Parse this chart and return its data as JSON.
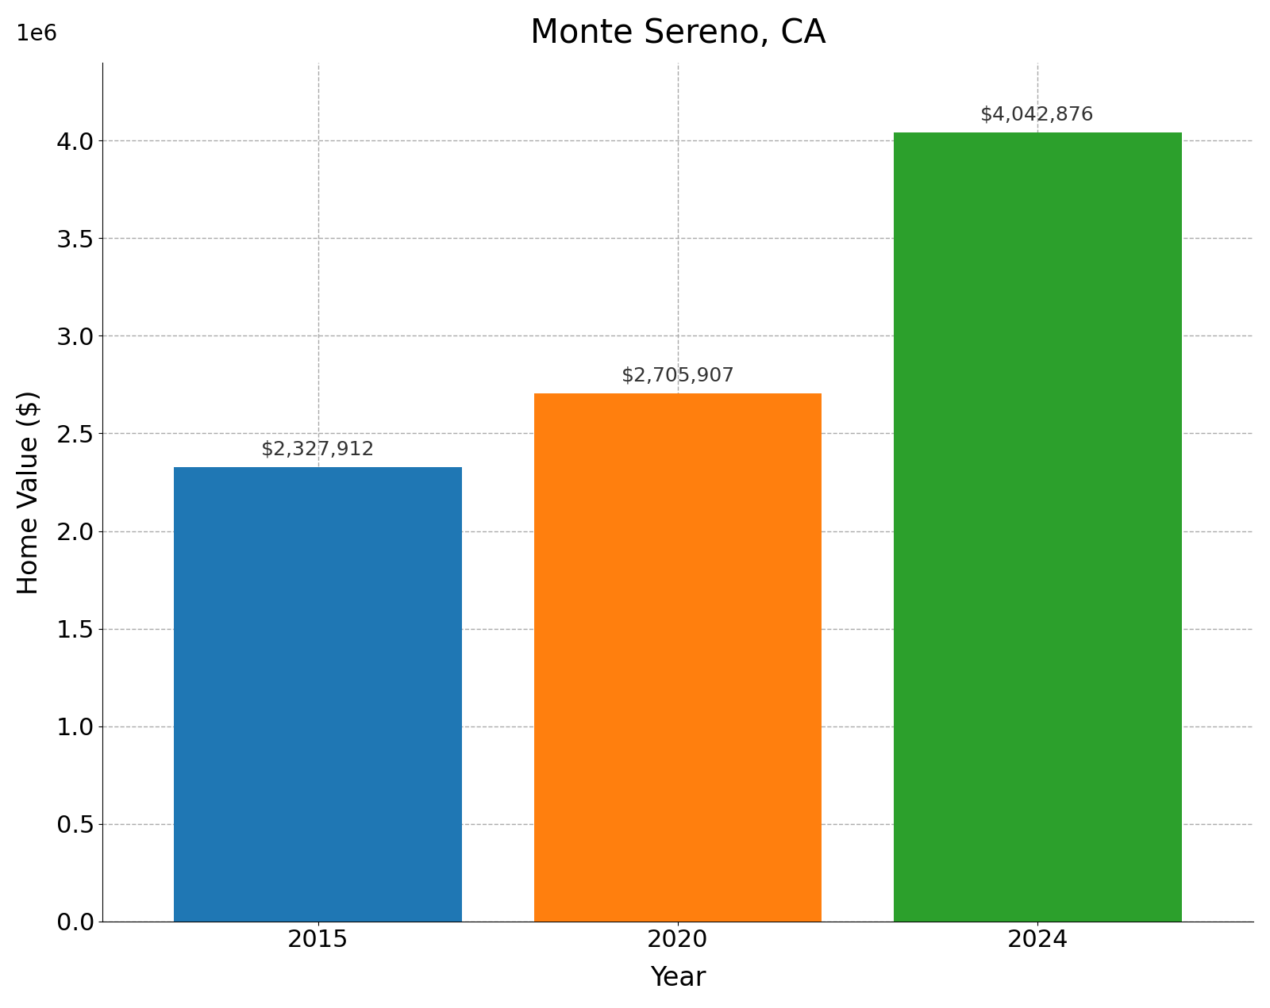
{
  "title": "Monte Sereno, CA",
  "xlabel": "Year",
  "ylabel": "Home Value ($)",
  "categories": [
    "2015",
    "2020",
    "2024"
  ],
  "values": [
    2327912,
    2705907,
    4042876
  ],
  "bar_colors": [
    "#1f77b4",
    "#ff7f0e",
    "#2ca02c"
  ],
  "labels": [
    "$2,327,912",
    "$2,705,907",
    "$4,042,876"
  ],
  "ylim": [
    0,
    4400000
  ],
  "title_fontsize": 30,
  "axis_label_fontsize": 24,
  "tick_fontsize": 22,
  "annotation_fontsize": 18,
  "background_color": "#ffffff",
  "grid_color": "#aaaaaa",
  "bar_width": 0.8
}
